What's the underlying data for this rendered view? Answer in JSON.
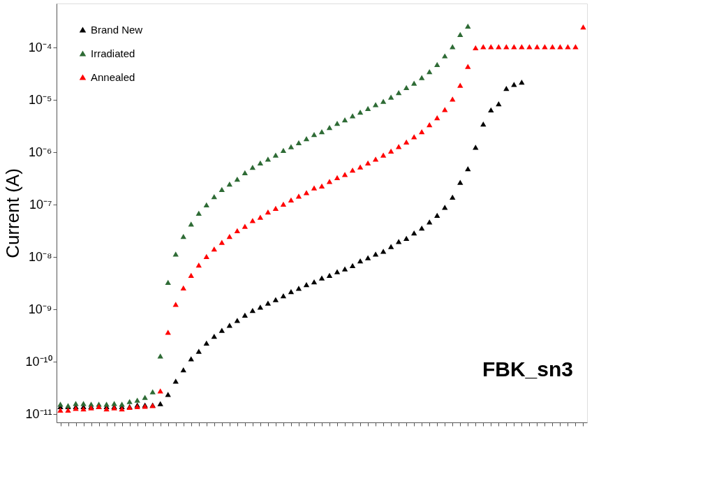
{
  "chart_data": {
    "type": "scatter",
    "ylabel": "Current (A)",
    "log": "y",
    "marker": "triangle",
    "grid": false,
    "legend": "top left",
    "tick_labels": "y",
    "categories": [
      null,
      null,
      null,
      null,
      null,
      null,
      null,
      null,
      null,
      null,
      null,
      null,
      null,
      null,
      null,
      null,
      null,
      null,
      null,
      null,
      null,
      null,
      null,
      null,
      null,
      null,
      null,
      null,
      null,
      null,
      null,
      null,
      null,
      null,
      null,
      null,
      null,
      null,
      null,
      null,
      null,
      null,
      null,
      null,
      null,
      null,
      null,
      null,
      null,
      null,
      null,
      null,
      null,
      null,
      null,
      null,
      null,
      null,
      null,
      null,
      null,
      null,
      null,
      null,
      null,
      null,
      null,
      null,
      null
    ],
    "ylim": [
      7e-12,
      0.0007
    ],
    "yticks": [
      {
        "value": 1e-11,
        "label": "10⁻¹¹"
      },
      {
        "value": 1e-10,
        "label": "10⁻¹⁰"
      },
      {
        "value": 1e-09,
        "label": "10⁻⁹"
      },
      {
        "value": 1e-08,
        "label": "10⁻⁸"
      },
      {
        "value": 1e-07,
        "label": "10⁻⁷"
      },
      {
        "value": 1e-06,
        "label": "10⁻⁶"
      },
      {
        "value": 1e-05,
        "label": "10⁻⁵"
      },
      {
        "value": 0.0001,
        "label": "10⁻⁴"
      }
    ],
    "series": [
      {
        "name": "Brand New",
        "color": "#000000",
        "values": [
          1.4e-11,
          1.4e-11,
          1.4e-11,
          1.4e-11,
          1.4e-11,
          1.4e-11,
          1.4e-11,
          1.4e-11,
          1.4e-11,
          1.4e-11,
          1.5e-11,
          1.5e-11,
          1.5e-11,
          1.6e-11,
          2.4e-11,
          4.3e-11,
          7.1e-11,
          1.15e-10,
          1.6e-10,
          2.3e-10,
          3.1e-10,
          4e-10,
          5e-10,
          6.2e-10,
          7.8e-10,
          9.6e-10,
          1.11e-09,
          1.33e-09,
          1.55e-09,
          1.83e-09,
          2.2e-09,
          2.55e-09,
          3e-09,
          3.4e-09,
          4e-09,
          4.5e-09,
          5.3e-09,
          6e-09,
          6.9e-09,
          8.5e-09,
          9.8e-09,
          1.15e-08,
          1.3e-08,
          1.6e-08,
          2e-08,
          2.3e-08,
          2.9e-08,
          3.6e-08,
          4.7e-08,
          6.3e-08,
          9e-08,
          1.4e-07,
          2.7e-07,
          4.9e-07,
          1.26e-06,
          3.5e-06,
          6.5e-06,
          8.5e-06,
          1.67e-05,
          2e-05,
          2.2e-05,
          null,
          null,
          null,
          null,
          null,
          null,
          null,
          null
        ]
      },
      {
        "name": "Irradiated",
        "color": "#2e6b35",
        "values": [
          1.56e-11,
          1.47e-11,
          1.61e-11,
          1.61e-11,
          1.56e-11,
          1.56e-11,
          1.56e-11,
          1.61e-11,
          1.56e-11,
          1.75e-11,
          1.86e-11,
          2.1e-11,
          2.7e-11,
          1.3e-10,
          3.3e-09,
          1.15e-08,
          2.5e-08,
          4.3e-08,
          6.9e-08,
          1e-07,
          1.43e-07,
          1.96e-07,
          2.5e-07,
          3.1e-07,
          4.1e-07,
          5.2e-07,
          6.3e-07,
          7.5e-07,
          8.9e-07,
          1.1e-06,
          1.29e-06,
          1.54e-06,
          1.83e-06,
          2.2e-06,
          2.5e-06,
          3e-06,
          3.6e-06,
          4.2e-06,
          5e-06,
          5.9e-06,
          6.9e-06,
          8.2e-06,
          9.5e-06,
          1.14e-05,
          1.39e-05,
          1.74e-05,
          2.1e-05,
          2.7e-05,
          3.5e-05,
          4.8e-05,
          7e-05,
          0.000105,
          0.000179,
          0.00026,
          null,
          null,
          null,
          null,
          null,
          null,
          null,
          null,
          null,
          null,
          null,
          null,
          null,
          null,
          null
        ]
      },
      {
        "name": "Annealed",
        "color": "#ff0000",
        "values": [
          1.2e-11,
          1.2e-11,
          1.3e-11,
          1.27e-11,
          1.33e-11,
          1.4e-11,
          1.27e-11,
          1.33e-11,
          1.27e-11,
          1.36e-11,
          1.4e-11,
          1.42e-11,
          1.47e-11,
          2.8e-11,
          3.7e-10,
          1.26e-09,
          2.6e-09,
          4.5e-09,
          7.1e-09,
          1.03e-08,
          1.44e-08,
          1.92e-08,
          2.5e-08,
          3.2e-08,
          3.9e-08,
          5e-08,
          5.8e-08,
          7.3e-08,
          8.6e-08,
          1.03e-07,
          1.24e-07,
          1.47e-07,
          1.71e-07,
          2.1e-07,
          2.3e-07,
          2.8e-07,
          3.3e-07,
          3.8e-07,
          4.6e-07,
          5.3e-07,
          6.3e-07,
          7.5e-07,
          8.9e-07,
          1.06e-06,
          1.3e-06,
          1.59e-06,
          2e-06,
          2.5e-06,
          3.4e-06,
          4.6e-06,
          6.6e-06,
          1.05e-05,
          1.92e-05,
          4.4e-05,
          0.0001,
          0.000105,
          0.000105,
          0.000105,
          0.000105,
          0.000105,
          0.000105,
          0.000105,
          0.000105,
          0.000105,
          0.000105,
          0.000105,
          0.000105,
          0.000105,
          0.00025
        ]
      }
    ],
    "annotations": [
      "FBK_sn3"
    ]
  }
}
